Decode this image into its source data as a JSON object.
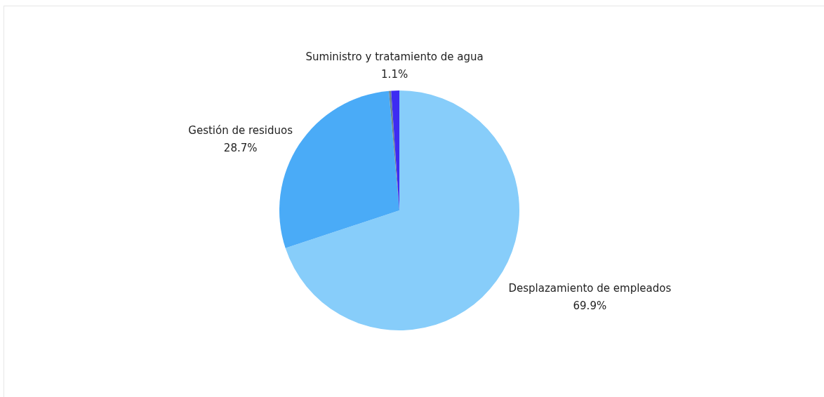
{
  "chart_data": {
    "type": "pie",
    "categories": [
      "Desplazamiento de empleados",
      "Gestión de residuos",
      null,
      "Suministro y tratamiento de agua"
    ],
    "values": [
      69.9,
      28.7,
      0.3,
      1.1
    ],
    "colors": [
      "#87cdfa",
      "#4aabf7",
      "#6e8496",
      "#3d2bf2"
    ],
    "value_labels": [
      "69.9%",
      "28.7%",
      null,
      "1.1%"
    ]
  }
}
